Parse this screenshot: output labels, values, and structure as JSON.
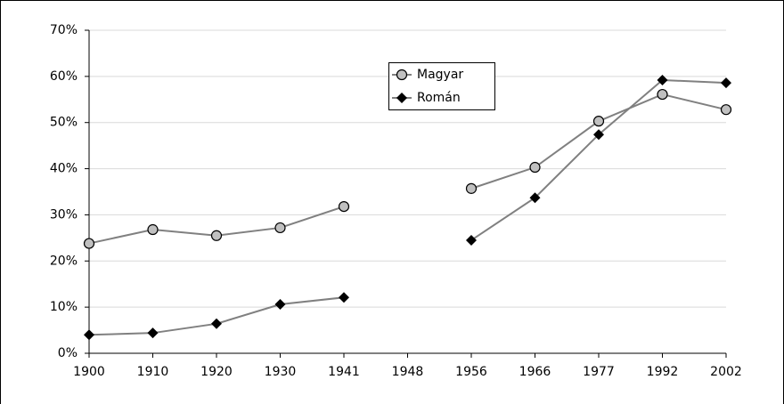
{
  "chart_data": {
    "type": "line",
    "categories": [
      "1900",
      "1910",
      "1920",
      "1930",
      "1941",
      "1948",
      "1956",
      "1966",
      "1977",
      "1992",
      "2002"
    ],
    "series": [
      {
        "name": "Magyar",
        "color": "#808080",
        "marker": "circle",
        "values": [
          23.8,
          26.8,
          25.5,
          27.2,
          31.8,
          null,
          35.7,
          40.3,
          50.3,
          56.1,
          52.8
        ]
      },
      {
        "name": "Román",
        "color": "#808080",
        "marker": "diamond",
        "values": [
          4.0,
          4.4,
          6.4,
          10.6,
          12.1,
          null,
          24.5,
          33.7,
          47.4,
          59.2,
          58.6
        ]
      }
    ],
    "ylim": [
      0,
      70
    ],
    "yticks": [
      {
        "value": 0,
        "label": "0%"
      },
      {
        "value": 10,
        "label": "10%"
      },
      {
        "value": 20,
        "label": "20%"
      },
      {
        "value": 30,
        "label": "30%"
      },
      {
        "value": 40,
        "label": "40%"
      },
      {
        "value": 50,
        "label": "50%"
      },
      {
        "value": 60,
        "label": "60%"
      },
      {
        "value": 70,
        "label": "70%"
      }
    ],
    "grid": true
  }
}
